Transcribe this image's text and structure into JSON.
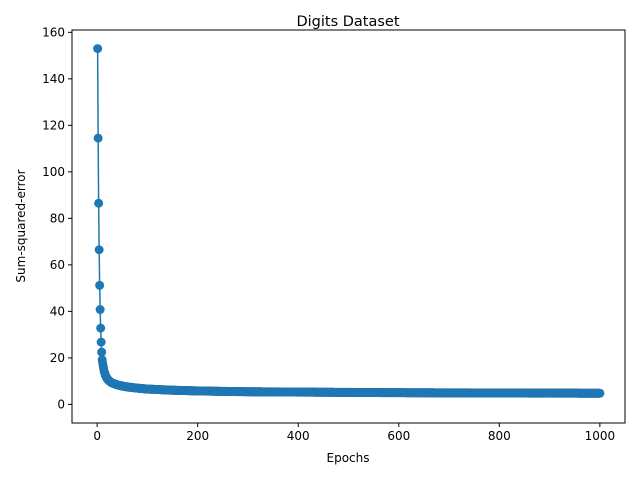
{
  "chart_data": {
    "type": "line",
    "title": "Digits Dataset",
    "xlabel": "Epochs",
    "ylabel": "Sum-squared-error",
    "xlim": [
      -50,
      1050
    ],
    "ylim": [
      -8,
      161
    ],
    "x_ticks": [
      0,
      200,
      400,
      600,
      800,
      1000
    ],
    "y_ticks": [
      0,
      20,
      40,
      60,
      80,
      100,
      120,
      140,
      160
    ],
    "grid": false,
    "legend": "none",
    "marker": "circle",
    "color": "#1f77b4",
    "series": [
      {
        "x_start": 1,
        "x_end": 1000,
        "key_points": [
          [
            1,
            153
          ],
          [
            2,
            114.5
          ],
          [
            3,
            86.5
          ],
          [
            4,
            66.5
          ],
          [
            5,
            51.2
          ],
          [
            6,
            40.8
          ],
          [
            7,
            32.8
          ],
          [
            8,
            26.8
          ],
          [
            9,
            22.5
          ],
          [
            10,
            19.2
          ],
          [
            12,
            16.5
          ],
          [
            14,
            14.2
          ],
          [
            16,
            12.8
          ],
          [
            18,
            11.8
          ],
          [
            20,
            11.0
          ],
          [
            23,
            10.3
          ],
          [
            26,
            9.7
          ],
          [
            30,
            9.2
          ],
          [
            35,
            8.8
          ],
          [
            40,
            8.4
          ],
          [
            50,
            7.9
          ],
          [
            60,
            7.5
          ],
          [
            80,
            7.0
          ],
          [
            100,
            6.6
          ],
          [
            150,
            6.1
          ],
          [
            200,
            5.8
          ],
          [
            250,
            5.6
          ],
          [
            300,
            5.45
          ],
          [
            400,
            5.3
          ],
          [
            500,
            5.15
          ],
          [
            600,
            5.05
          ],
          [
            700,
            4.95
          ],
          [
            800,
            4.9
          ],
          [
            900,
            4.85
          ],
          [
            1000,
            4.8
          ]
        ]
      }
    ]
  }
}
